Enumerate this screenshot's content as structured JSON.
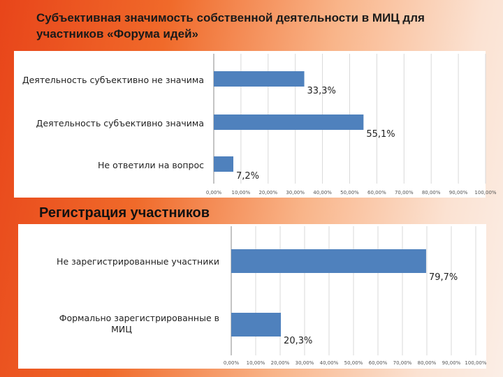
{
  "title": "Субъективная значимость собственной деятельности в МИЦ для участников «Форума идей»",
  "section_title": "Регистрация участников",
  "colors": {
    "bar": "#4f81bd",
    "grid": "#d9d9d9",
    "axis": "#888888"
  },
  "chart_data": [
    {
      "type": "bar",
      "orientation": "horizontal",
      "categories": [
        "Деятельность субъективно не значима",
        "Деятельность субъективно значима",
        "Не ответили на вопрос"
      ],
      "values": [
        33.3,
        55.1,
        7.2
      ],
      "data_labels": [
        "33,3%",
        "55,1%",
        "7,2%"
      ],
      "tick_labels": [
        "0,00%",
        "10,00%",
        "20,00%",
        "30,00%",
        "40,00%",
        "50,00%",
        "60,00%",
        "70,00%",
        "80,00%",
        "90,00%",
        "100,00%"
      ],
      "xlim": [
        0,
        100
      ],
      "grid": true
    },
    {
      "type": "bar",
      "orientation": "horizontal",
      "categories": [
        "Не зарегистрированные участники",
        "Формально зарегистрированные в МИЦ"
      ],
      "values": [
        79.7,
        20.3
      ],
      "data_labels": [
        "79,7%",
        "20,3%"
      ],
      "tick_labels": [
        "0,00%",
        "10,00%",
        "20,00%",
        "30,00%",
        "40,00%",
        "50,00%",
        "60,00%",
        "70,00%",
        "80,00%",
        "90,00%",
        "100,00%"
      ],
      "xlim": [
        0,
        100
      ],
      "grid": true
    }
  ]
}
